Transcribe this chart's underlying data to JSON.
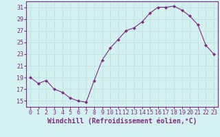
{
  "x": [
    0,
    1,
    2,
    3,
    4,
    5,
    6,
    7,
    8,
    9,
    10,
    11,
    12,
    13,
    14,
    15,
    16,
    17,
    18,
    19,
    20,
    21,
    22,
    23
  ],
  "y": [
    19,
    18,
    18.5,
    17,
    16.5,
    15.5,
    15,
    14.8,
    18.5,
    22,
    24,
    25.5,
    27,
    27.5,
    28.5,
    30,
    31,
    31,
    31.2,
    30.5,
    29.5,
    28,
    24.5,
    23
  ],
  "xlabel": "Windchill (Refroidissement éolien,°C)",
  "ylim": [
    14,
    32
  ],
  "yticks": [
    15,
    17,
    19,
    21,
    23,
    25,
    27,
    29,
    31
  ],
  "xticks": [
    0,
    1,
    2,
    3,
    4,
    5,
    6,
    7,
    8,
    9,
    10,
    11,
    12,
    13,
    14,
    15,
    16,
    17,
    18,
    19,
    20,
    21,
    22,
    23
  ],
  "line_color": "#7b2d7b",
  "marker": "D",
  "marker_size": 2,
  "background_color": "#d4f0f0",
  "grid_color": "#b8dede",
  "tick_label_color": "#7b2d7b",
  "xlabel_color": "#7b2d7b",
  "xlabel_fontsize": 7,
  "tick_fontsize": 6
}
